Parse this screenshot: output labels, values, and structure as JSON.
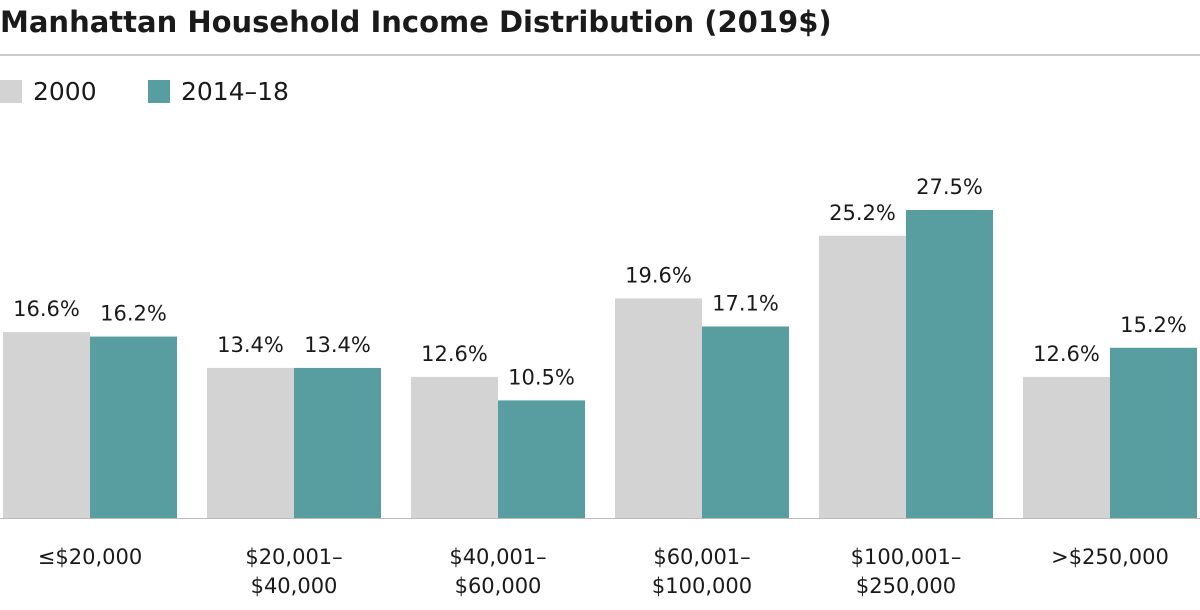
{
  "chart_data": {
    "type": "bar",
    "title": "Manhattan Household Income Distribution (2019$)",
    "categories": [
      [
        "≤$20,000"
      ],
      [
        "$20,001–",
        "$40,000"
      ],
      [
        "$40,001–",
        "$60,000"
      ],
      [
        "$60,001–",
        "$100,000"
      ],
      [
        "$100,001–",
        "$250,000"
      ],
      [
        ">$250,000"
      ]
    ],
    "series": [
      {
        "name": "2000",
        "color": "#d3d3d3",
        "values": [
          16.6,
          13.4,
          12.6,
          19.6,
          25.2,
          12.6
        ],
        "value_labels": [
          "16.6%",
          "13.4%",
          "12.6%",
          "19.6%",
          "25.2%",
          "12.6%"
        ]
      },
      {
        "name": "2014–18",
        "color": "#589ea0",
        "values": [
          16.2,
          13.4,
          10.5,
          17.1,
          27.5,
          15.2
        ],
        "value_labels": [
          "16.2%",
          "13.4%",
          "10.5%",
          "17.1%",
          "27.5%",
          "15.2%"
        ]
      }
    ]
  }
}
